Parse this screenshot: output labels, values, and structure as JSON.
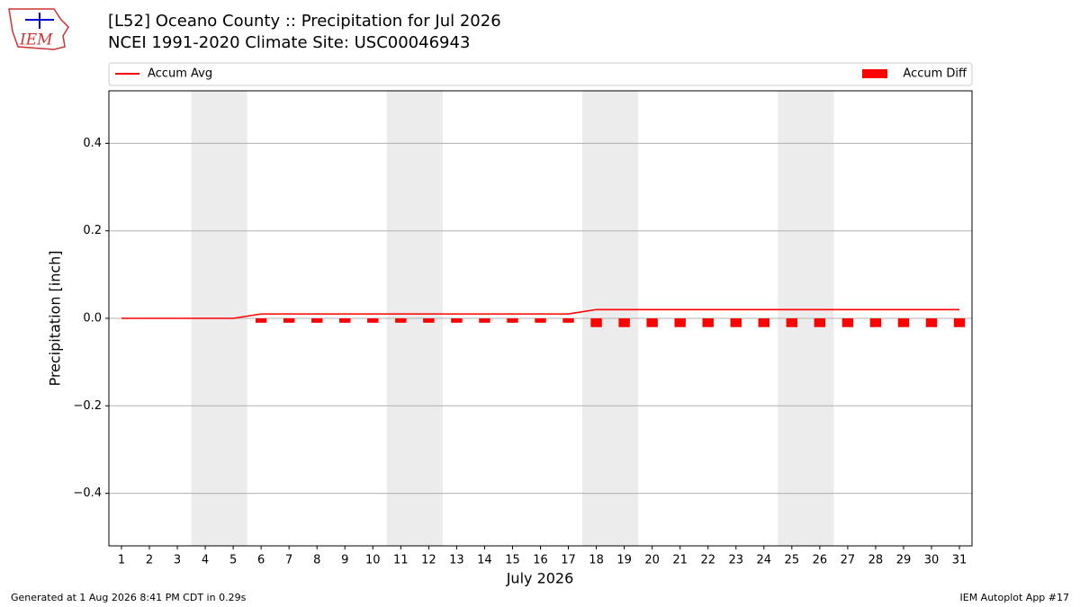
{
  "logo": "IEM",
  "footer_left": "Generated at 1 Aug 2026 8:41 PM CDT in 0.29s",
  "footer_right": "IEM Autoplot App #17",
  "chart_data": {
    "type": "bar",
    "title": "[L52] Oceano County :: Precipitation for Jul 2026",
    "subtitle": "NCEI 1991-2020 Climate Site: USC00046943",
    "x_label": "July 2026",
    "y_label": "Precipitation [inch]",
    "x": [
      1,
      2,
      3,
      4,
      5,
      6,
      7,
      8,
      9,
      10,
      11,
      12,
      13,
      14,
      15,
      16,
      17,
      18,
      19,
      20,
      21,
      22,
      23,
      24,
      25,
      26,
      27,
      28,
      29,
      30,
      31
    ],
    "series": [
      {
        "name": "Accum Avg",
        "type": "line",
        "color": "#ff0000",
        "values": [
          0,
          0,
          0,
          0,
          0,
          0.01,
          0.01,
          0.01,
          0.01,
          0.01,
          0.01,
          0.01,
          0.01,
          0.01,
          0.01,
          0.01,
          0.01,
          0.02,
          0.02,
          0.02,
          0.02,
          0.02,
          0.02,
          0.02,
          0.02,
          0.02,
          0.02,
          0.02,
          0.02,
          0.02,
          0.02
        ]
      },
      {
        "name": "Accum Diff",
        "type": "bar",
        "color": "#ff0000",
        "values": [
          0,
          0,
          0,
          0,
          0,
          -0.01,
          -0.01,
          -0.01,
          -0.01,
          -0.01,
          -0.01,
          -0.01,
          -0.01,
          -0.01,
          -0.01,
          -0.01,
          -0.01,
          -0.02,
          -0.02,
          -0.02,
          -0.02,
          -0.02,
          -0.02,
          -0.02,
          -0.02,
          -0.02,
          -0.02,
          -0.02,
          -0.02,
          -0.02,
          -0.02
        ]
      }
    ],
    "shaded_spans": [
      [
        3.5,
        5.5
      ],
      [
        10.5,
        12.5
      ],
      [
        17.5,
        19.5
      ],
      [
        24.5,
        26.5
      ]
    ],
    "shade_color": "#ececec",
    "xlim": [
      0.55,
      31.45
    ],
    "ylim": [
      -0.52,
      0.52
    ],
    "xticks": [
      1,
      2,
      3,
      4,
      5,
      6,
      7,
      8,
      9,
      10,
      11,
      12,
      13,
      14,
      15,
      16,
      17,
      18,
      19,
      20,
      21,
      22,
      23,
      24,
      25,
      26,
      27,
      28,
      29,
      30,
      31
    ],
    "yticks": [
      {
        "value": -0.4,
        "label": "−0.4"
      },
      {
        "value": -0.2,
        "label": "−0.2"
      },
      {
        "value": 0,
        "label": "0.0"
      },
      0.2,
      0.4
    ],
    "grid": true
  }
}
